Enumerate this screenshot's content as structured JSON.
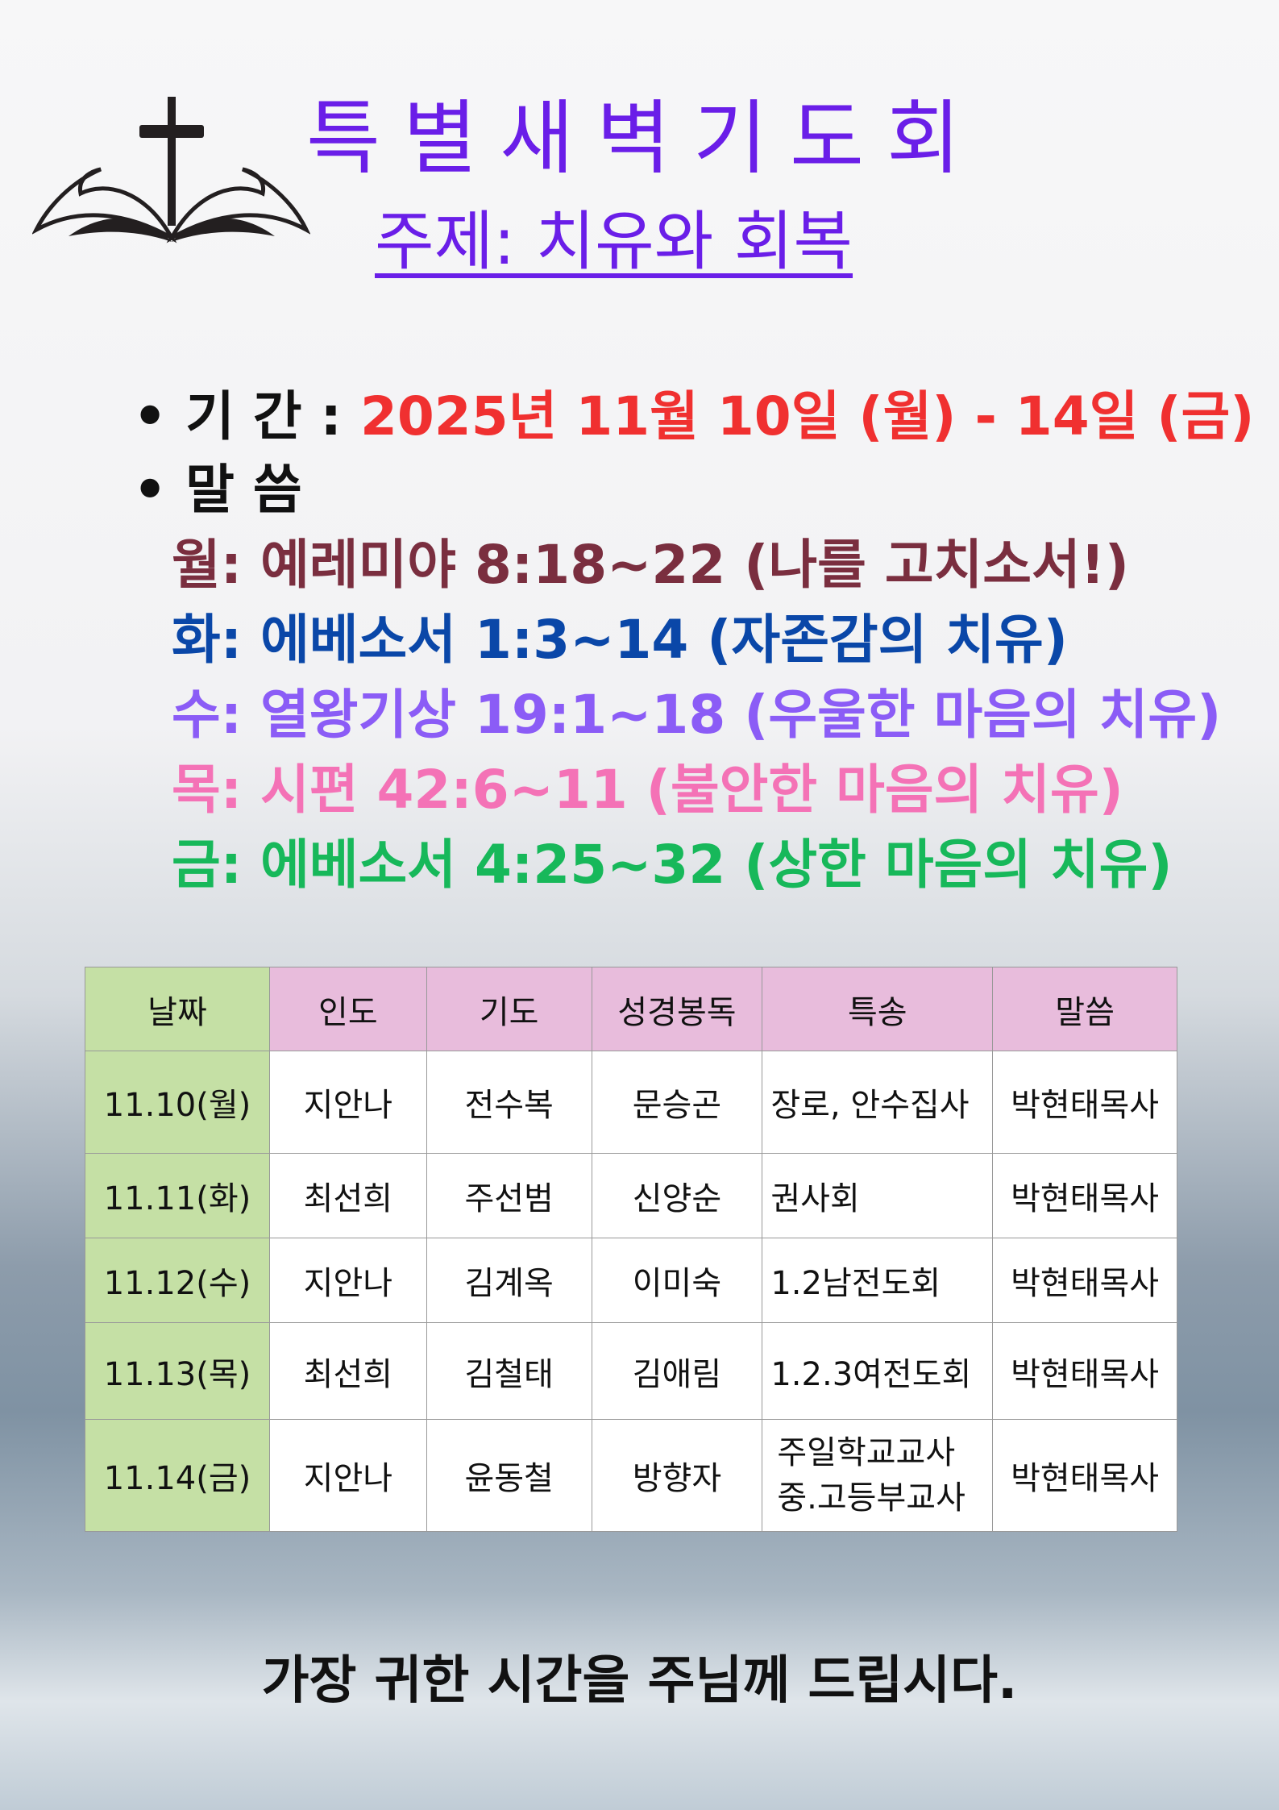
{
  "header": {
    "title": "특별새벽기도회",
    "subtitle": "주제: 치유와 회복"
  },
  "info": {
    "period_label": "• 기 간 : ",
    "period_value": "2025년 11월 10일 (월) - 14일 (금)",
    "word_label": "• 말 씀"
  },
  "verses": [
    {
      "text": "월: 예레미야 8:18~22 (나를 고치소서!)",
      "color": "#7a2e3f"
    },
    {
      "text": "화: 에베소서 1:3~14 (자존감의 치유)",
      "color": "#0a47a8"
    },
    {
      "text": "수: 열왕기상 19:1~18 (우울한 마음의 치유)",
      "color": "#8b5cf6"
    },
    {
      "text": "목: 시편 42:6~11 (불안한 마음의 치유)",
      "color": "#f472b6"
    },
    {
      "text": "금: 에베소서 4:25~32 (상한 마음의 치유)",
      "color": "#17b85a"
    }
  ],
  "table": {
    "headers": [
      "날짜",
      "인도",
      "기도",
      "성경봉독",
      "특송",
      "말씀"
    ],
    "rows": [
      [
        "11.10(월)",
        "지안나",
        "전수복",
        "문승곤",
        "장로, 안수집사",
        "박현태목사"
      ],
      [
        "11.11(화)",
        "최선희",
        "주선범",
        "신양순",
        "권사회",
        "박현태목사"
      ],
      [
        "11.12(수)",
        "지안나",
        "김계옥",
        "이미숙",
        "1.2남전도회",
        "박현태목사"
      ],
      [
        "11.13(목)",
        "최선희",
        "김철태",
        "김애림",
        "1.2.3여전도회",
        "박현태목사"
      ],
      [
        "11.14(금)",
        "지안나",
        "윤동철",
        "방향자",
        "주일학교교사\n중.고등부교사",
        "박현태목사"
      ]
    ]
  },
  "footer": "가장 귀한 시간을 주님께 드립시다.",
  "colors": {
    "title": "#6a1ee8",
    "period": "#f03030"
  },
  "icons": [
    "cross-bible-icon"
  ]
}
